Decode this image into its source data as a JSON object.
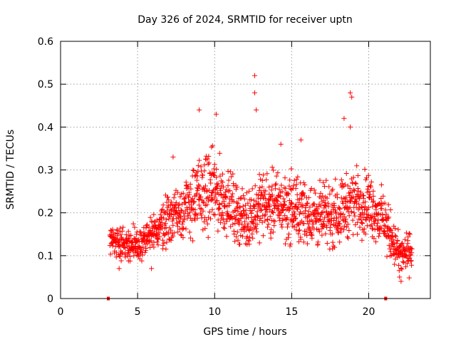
{
  "chart_data": {
    "type": "scatter",
    "title": "Day 326 of 2024, SRMTID for receiver uptn",
    "xlabel": "GPS time / hours",
    "ylabel": "SRMTID / TECUs",
    "xlim": [
      0,
      24
    ],
    "ylim": [
      0,
      0.6
    ],
    "x_ticks": [
      0,
      5,
      10,
      15,
      20
    ],
    "x_tick_labels": [
      "0",
      "5",
      "10",
      "15",
      "20"
    ],
    "y_ticks": [
      0,
      0.1,
      0.2,
      0.3,
      0.4,
      0.5,
      0.6
    ],
    "y_tick_labels": [
      "0",
      "0.1",
      "0.2",
      "0.3",
      "0.4",
      "0.5",
      "0.6"
    ],
    "grid": true,
    "marker": "plus",
    "color": "#ff0000",
    "zero_markers": [
      3.1,
      21.1
    ],
    "series_profile": {
      "name": "SRMTID",
      "data_range_hours": [
        3.2,
        22.8
      ],
      "envelope": [
        {
          "x": 3.2,
          "center": 0.14,
          "spread": 0.04
        },
        {
          "x": 4.0,
          "center": 0.13,
          "spread": 0.04
        },
        {
          "x": 5.0,
          "center": 0.12,
          "spread": 0.05
        },
        {
          "x": 6.0,
          "center": 0.15,
          "spread": 0.05
        },
        {
          "x": 7.0,
          "center": 0.19,
          "spread": 0.07
        },
        {
          "x": 8.0,
          "center": 0.21,
          "spread": 0.08
        },
        {
          "x": 9.0,
          "center": 0.24,
          "spread": 0.1
        },
        {
          "x": 10.0,
          "center": 0.25,
          "spread": 0.1
        },
        {
          "x": 11.0,
          "center": 0.22,
          "spread": 0.08
        },
        {
          "x": 12.0,
          "center": 0.18,
          "spread": 0.07
        },
        {
          "x": 13.0,
          "center": 0.22,
          "spread": 0.08
        },
        {
          "x": 14.0,
          "center": 0.22,
          "spread": 0.08
        },
        {
          "x": 15.0,
          "center": 0.21,
          "spread": 0.09
        },
        {
          "x": 16.0,
          "center": 0.2,
          "spread": 0.08
        },
        {
          "x": 17.0,
          "center": 0.19,
          "spread": 0.08
        },
        {
          "x": 18.0,
          "center": 0.2,
          "spread": 0.08
        },
        {
          "x": 19.0,
          "center": 0.23,
          "spread": 0.08
        },
        {
          "x": 20.0,
          "center": 0.22,
          "spread": 0.08
        },
        {
          "x": 21.0,
          "center": 0.18,
          "spread": 0.07
        },
        {
          "x": 22.0,
          "center": 0.1,
          "spread": 0.05
        },
        {
          "x": 22.8,
          "center": 0.11,
          "spread": 0.05
        }
      ],
      "peaks": [
        {
          "x": 9.0,
          "y": 0.44
        },
        {
          "x": 10.1,
          "y": 0.43
        },
        {
          "x": 12.6,
          "y": 0.52
        },
        {
          "x": 12.6,
          "y": 0.48
        },
        {
          "x": 12.7,
          "y": 0.44
        },
        {
          "x": 18.4,
          "y": 0.42
        },
        {
          "x": 18.8,
          "y": 0.48
        },
        {
          "x": 18.9,
          "y": 0.47
        },
        {
          "x": 18.8,
          "y": 0.4
        },
        {
          "x": 15.6,
          "y": 0.37
        },
        {
          "x": 7.3,
          "y": 0.33
        },
        {
          "x": 14.3,
          "y": 0.36
        },
        {
          "x": 22.1,
          "y": 0.04
        },
        {
          "x": 22.0,
          "y": 0.05
        },
        {
          "x": 5.9,
          "y": 0.07
        },
        {
          "x": 3.8,
          "y": 0.07
        }
      ]
    }
  }
}
